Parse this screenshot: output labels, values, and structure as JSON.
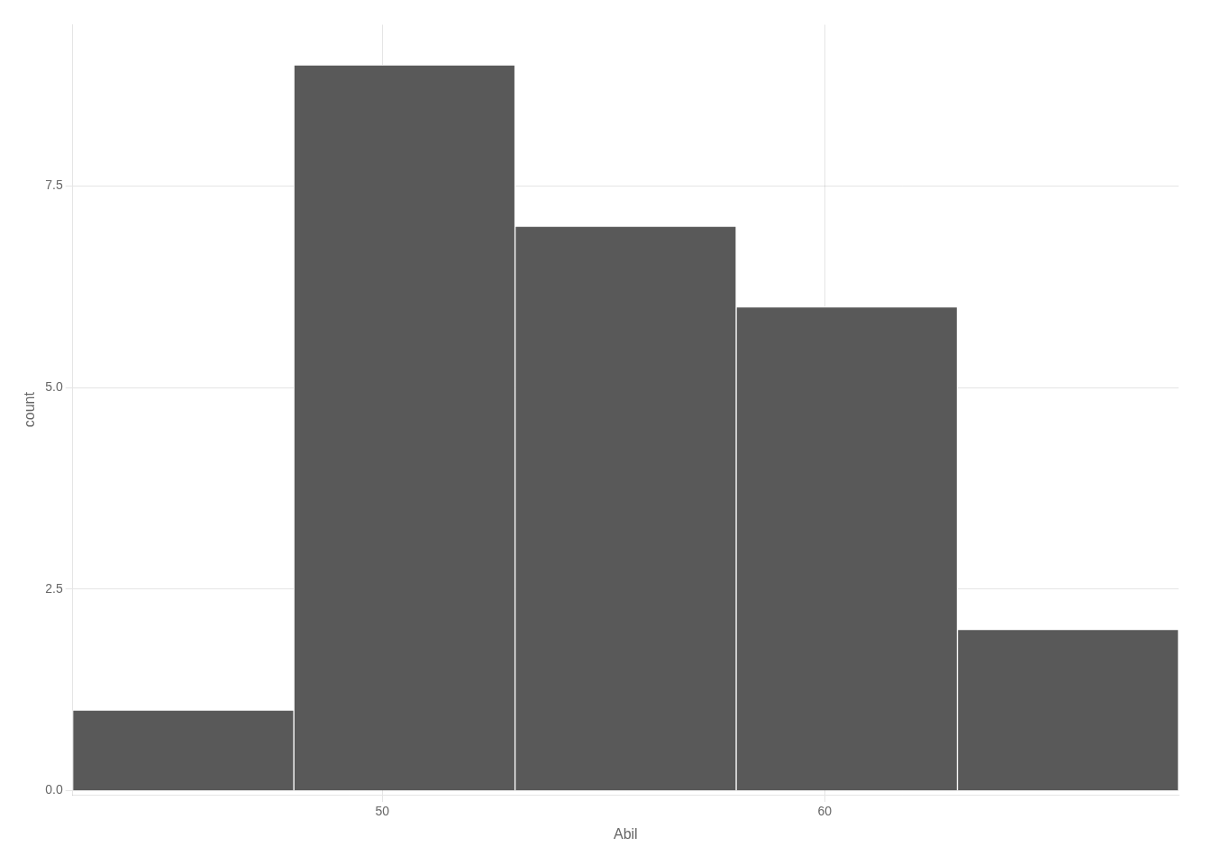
{
  "chart_data": {
    "type": "histogram",
    "bins": [
      43,
      48,
      53,
      58,
      63,
      68
    ],
    "values": [
      1,
      9,
      7,
      6,
      2
    ],
    "color": "#595959",
    "xlabel": "Abil",
    "ylabel": "count",
    "xlim": [
      43,
      68
    ],
    "xticks": [
      50,
      60
    ],
    "ylim": [
      -0.05,
      9.5
    ],
    "yticks": [
      {
        "value": 0,
        "label": "0.0"
      },
      2.5,
      {
        "value": 5,
        "label": "5.0"
      },
      7.5
    ],
    "grid": true
  }
}
